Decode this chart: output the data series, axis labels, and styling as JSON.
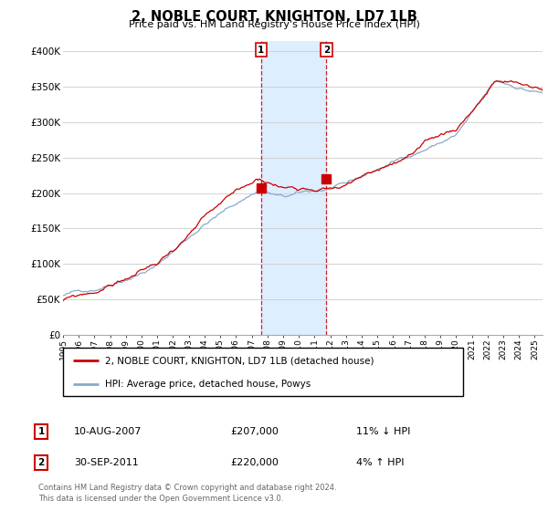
{
  "title": "2, NOBLE COURT, KNIGHTON, LD7 1LB",
  "subtitle": "Price paid vs. HM Land Registry's House Price Index (HPI)",
  "ylabel_vals": [
    "£0",
    "£50K",
    "£100K",
    "£150K",
    "£200K",
    "£250K",
    "£300K",
    "£350K",
    "£400K"
  ],
  "yticks": [
    0,
    50000,
    100000,
    150000,
    200000,
    250000,
    300000,
    350000,
    400000
  ],
  "ylim": [
    0,
    415000
  ],
  "xlim_start": 1995.0,
  "xlim_end": 2025.5,
  "transaction1": {
    "date": 2007.6,
    "price": 207000,
    "label": "1",
    "date_str": "10-AUG-2007",
    "hpi_str": "11% ↓ HPI"
  },
  "transaction2": {
    "date": 2011.75,
    "price": 220000,
    "label": "2",
    "date_str": "30-SEP-2011",
    "hpi_str": "4% ↑ HPI"
  },
  "sale_color": "#cc0000",
  "hpi_color": "#88aacc",
  "shade_color": "#ddeeff",
  "legend_label_sale": "2, NOBLE COURT, KNIGHTON, LD7 1LB (detached house)",
  "legend_label_hpi": "HPI: Average price, detached house, Powys",
  "footer1": "Contains HM Land Registry data © Crown copyright and database right 2024.",
  "footer2": "This data is licensed under the Open Government Licence v3.0.",
  "table_rows": [
    {
      "num": "1",
      "date": "10-AUG-2007",
      "price": "£207,000",
      "hpi": "11% ↓ HPI"
    },
    {
      "num": "2",
      "date": "30-SEP-2011",
      "price": "£220,000",
      "hpi": "4% ↑ HPI"
    }
  ],
  "background_color": "#ffffff",
  "grid_color": "#cccccc",
  "hpi_seed": 42,
  "sale_seed": 99
}
